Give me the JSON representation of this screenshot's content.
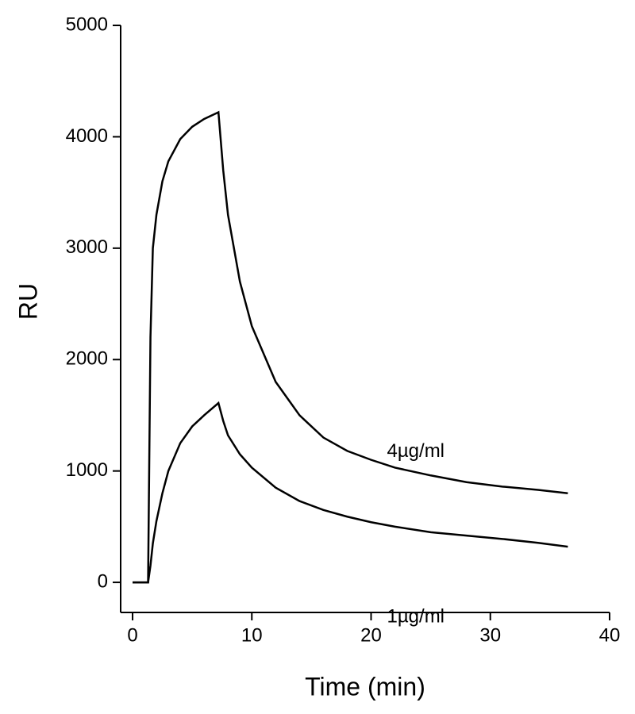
{
  "chart_data": {
    "type": "line",
    "x_label": "Time (min)",
    "y_label": "RU",
    "xlim": [
      -1,
      40
    ],
    "ylim": [
      -270,
      5000
    ],
    "xticks": [
      0,
      10,
      20,
      30,
      40
    ],
    "yticks": [
      0,
      1000,
      2000,
      3000,
      4000,
      5000
    ],
    "grid": false,
    "x": [
      0,
      1.3,
      1.5,
      1.7,
      2,
      2.5,
      3,
      4,
      5,
      6,
      7.2,
      7.6,
      8,
      9,
      10,
      12,
      14,
      16,
      18,
      20,
      22,
      25,
      28,
      31,
      34,
      36.5
    ],
    "series": [
      {
        "name": "4µg/ml",
        "color": "#000000",
        "values": [
          0,
          0,
          2200,
          3000,
          3300,
          3600,
          3780,
          3980,
          4090,
          4160,
          4220,
          3700,
          3300,
          2700,
          2300,
          1800,
          1500,
          1300,
          1180,
          1100,
          1030,
          960,
          900,
          860,
          830,
          800
        ]
      },
      {
        "name": "1µg/ml",
        "color": "#000000",
        "values": [
          0,
          0,
          150,
          350,
          550,
          800,
          1000,
          1250,
          1400,
          1500,
          1610,
          1450,
          1320,
          1150,
          1030,
          850,
          730,
          650,
          590,
          540,
          500,
          450,
          420,
          390,
          355,
          320
        ]
      }
    ]
  }
}
